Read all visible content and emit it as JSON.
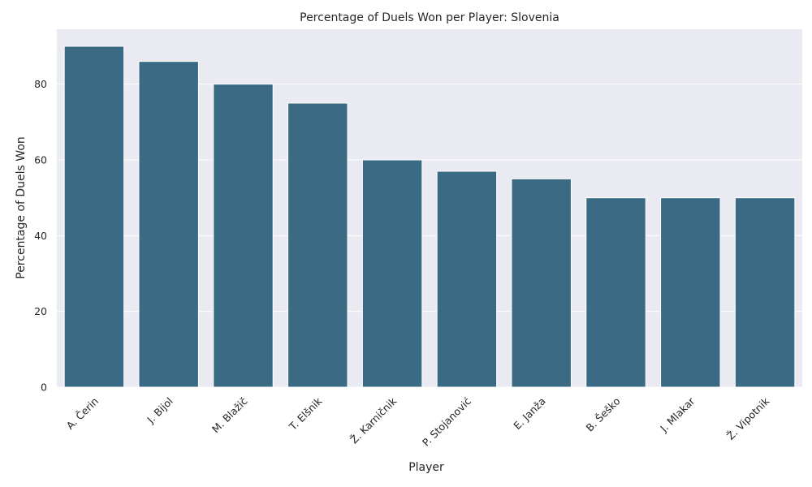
{
  "chart_data": {
    "type": "bar",
    "title": "Percentage of Duels Won per Player: Slovenia",
    "xlabel": "Player",
    "ylabel": "Percentage of Duels Won",
    "categories": [
      "A. Čerin",
      "J. Bijol",
      "M. Blažič",
      "T. Elšnik",
      "Ž. Karničnik",
      "P. Stojanović",
      "E. Janža",
      "B. Šeško",
      "J. Mlakar",
      "Ž. Vipotnik"
    ],
    "values": [
      90,
      86,
      80,
      75,
      60,
      57,
      55,
      50,
      50,
      50
    ],
    "ylim": [
      0,
      94.5
    ],
    "yticks": [
      0,
      20,
      40,
      60,
      80
    ],
    "grid": true,
    "colors": {
      "bar": "#3b6b84",
      "plot_background": "#eaeaf2",
      "grid": "#ffffff"
    }
  }
}
